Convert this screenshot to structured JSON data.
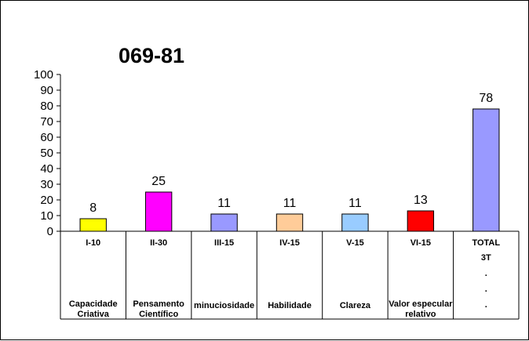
{
  "chart_data": {
    "type": "bar",
    "title": "069-81",
    "ylim": [
      0,
      100
    ],
    "yticks": [
      0,
      10,
      20,
      30,
      40,
      50,
      60,
      70,
      80,
      90,
      100
    ],
    "grid": false,
    "legend": "none",
    "categories": [
      {
        "code": "I-10",
        "desc": [
          "Capacidade",
          "Criativa"
        ],
        "value": 8,
        "color": "#ffff00"
      },
      {
        "code": "II-30",
        "desc": [
          "Pensamento",
          "Científico"
        ],
        "value": 25,
        "color": "#ff00ff"
      },
      {
        "code": "III-15",
        "desc": [
          "minuciosidade"
        ],
        "value": 11,
        "color": "#9999ff"
      },
      {
        "code": "IV-15",
        "desc": [
          "Habilidade"
        ],
        "value": 11,
        "color": "#ffcc99"
      },
      {
        "code": "V-15",
        "desc": [
          "Clareza"
        ],
        "value": 11,
        "color": "#99ccff"
      },
      {
        "code": "VI-15",
        "desc": [
          "Valor especular",
          "relativo"
        ],
        "value": 13,
        "color": "#ff0000"
      },
      {
        "code": "TOTAL",
        "desc": [
          "3T",
          ".",
          ".",
          "."
        ],
        "value": 78,
        "color": "#9999ff"
      }
    ]
  }
}
